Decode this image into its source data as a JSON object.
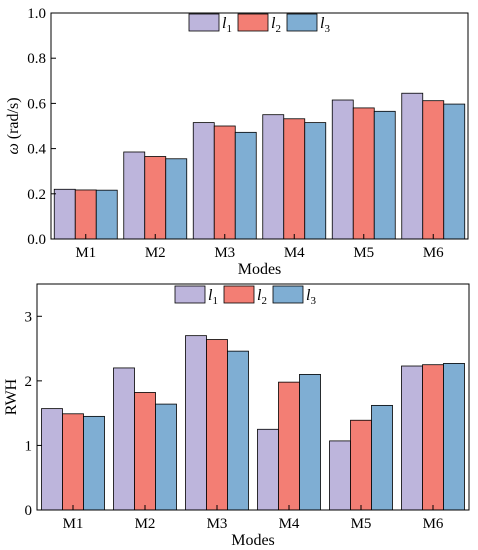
{
  "colors": {
    "l1": "#bdb5dc",
    "l2": "#f37e74",
    "l3": "#7faed3",
    "axis": "#000000"
  },
  "chart_data": [
    {
      "type": "bar",
      "categories": [
        "M1",
        "M2",
        "M3",
        "M4",
        "M5",
        "M6"
      ],
      "series": [
        {
          "name": "l1",
          "subscript": "1",
          "values": [
            0.22,
            0.385,
            0.515,
            0.55,
            0.615,
            0.645
          ]
        },
        {
          "name": "l2",
          "subscript": "2",
          "values": [
            0.217,
            0.365,
            0.5,
            0.532,
            0.58,
            0.612
          ]
        },
        {
          "name": "l3",
          "subscript": "3",
          "values": [
            0.216,
            0.355,
            0.472,
            0.515,
            0.565,
            0.597
          ]
        }
      ],
      "xlabel": "Modes",
      "ylabel_symbol": "ω",
      "ylabel_unit": " (rad/s)",
      "ylim": [
        0,
        1.0
      ],
      "yticks": [
        "0.0",
        "0.2",
        "0.4",
        "0.6",
        "0.8",
        "1.0"
      ],
      "legend_position": "top-center",
      "grid": false
    },
    {
      "type": "bar",
      "categories": [
        "M1",
        "M2",
        "M3",
        "M4",
        "M5",
        "M6"
      ],
      "series": [
        {
          "name": "l1",
          "subscript": "1",
          "values": [
            1.57,
            2.2,
            2.7,
            1.25,
            1.07,
            2.23
          ]
        },
        {
          "name": "l2",
          "subscript": "2",
          "values": [
            1.49,
            1.82,
            2.64,
            1.98,
            1.39,
            2.25
          ]
        },
        {
          "name": "l3",
          "subscript": "3",
          "values": [
            1.45,
            1.64,
            2.46,
            2.1,
            1.62,
            2.27
          ]
        }
      ],
      "xlabel": "Modes",
      "ylabel": "RWH",
      "ylim": [
        0,
        3.5
      ],
      "yticks": [
        "0",
        "1",
        "2",
        "3"
      ],
      "legend_position": "top-center",
      "grid": false
    }
  ]
}
